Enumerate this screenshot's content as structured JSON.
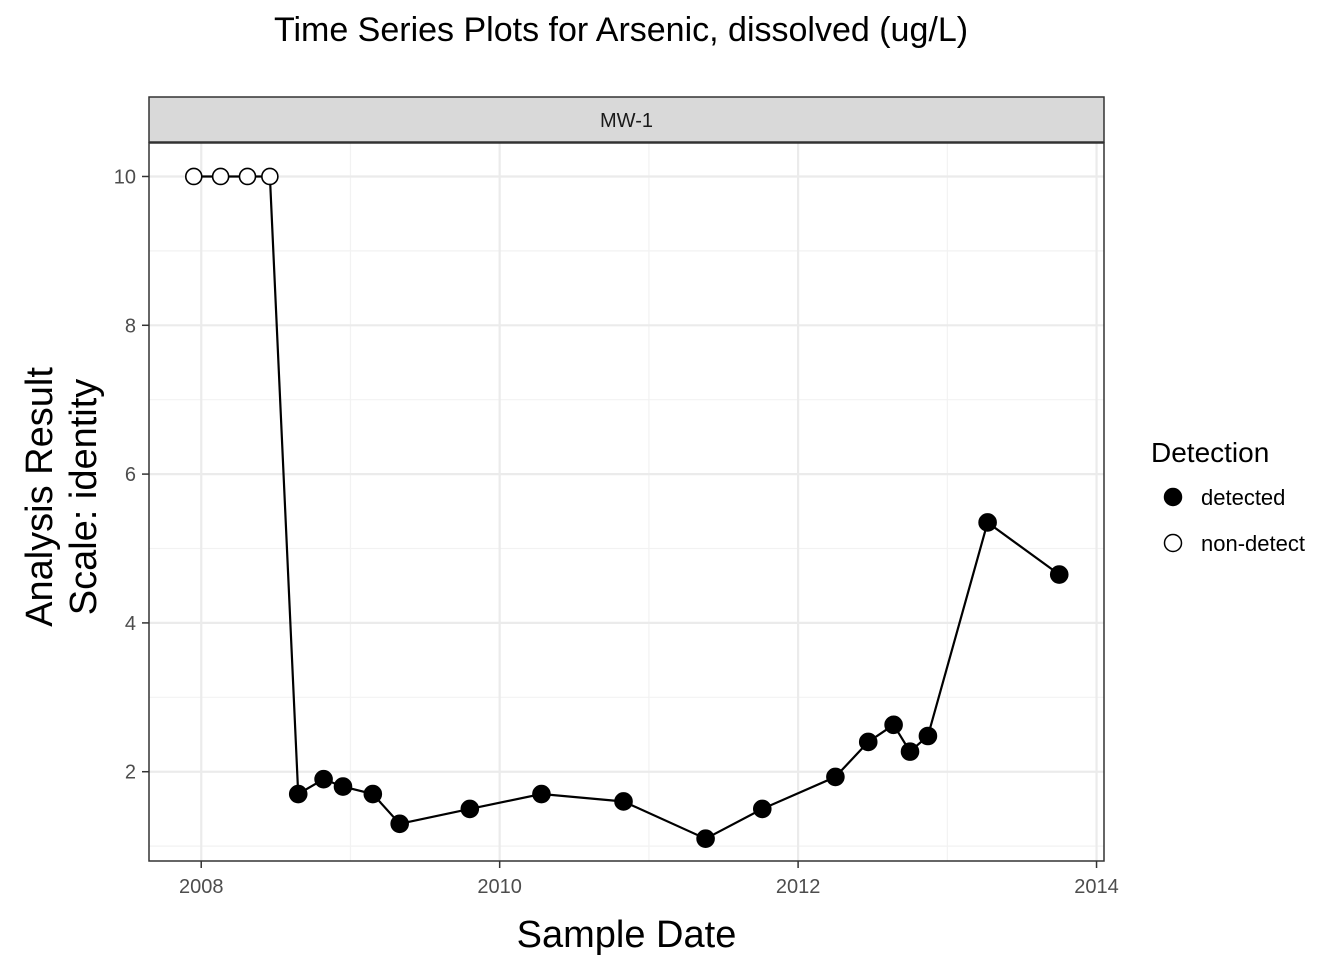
{
  "chart_data": {
    "type": "line",
    "title": "Time Series Plots for Arsenic, dissolved (ug/L)",
    "facet": "MW-1",
    "xlabel": "Sample Date",
    "ylabel_lines": [
      "Analysis Result",
      "Scale: identity"
    ],
    "xlim": [
      2007.65,
      2014.05
    ],
    "ylim": [
      0.8,
      10.45
    ],
    "x_ticks": [
      2008,
      2010,
      2012,
      2014
    ],
    "x_tick_labels": [
      "2008",
      "2010",
      "2012",
      "2014"
    ],
    "y_ticks": [
      2,
      4,
      6,
      8,
      10
    ],
    "y_tick_labels": [
      "2",
      "4",
      "6",
      "8",
      "10"
    ],
    "grid": true,
    "legend": {
      "title": "Detection",
      "position": "right",
      "entries": [
        {
          "label": "detected",
          "filled": true
        },
        {
          "label": "non-detect",
          "filled": false
        }
      ]
    },
    "series": [
      {
        "points": [
          {
            "x": 2007.95,
            "y": 10.0,
            "detect": "non-detect"
          },
          {
            "x": 2008.13,
            "y": 10.0,
            "detect": "non-detect"
          },
          {
            "x": 2008.31,
            "y": 10.0,
            "detect": "non-detect"
          },
          {
            "x": 2008.46,
            "y": 10.0,
            "detect": "non-detect"
          },
          {
            "x": 2008.65,
            "y": 1.7,
            "detect": "detected"
          },
          {
            "x": 2008.82,
            "y": 1.9,
            "detect": "detected"
          },
          {
            "x": 2008.95,
            "y": 1.8,
            "detect": "detected"
          },
          {
            "x": 2009.15,
            "y": 1.7,
            "detect": "detected"
          },
          {
            "x": 2009.33,
            "y": 1.3,
            "detect": "detected"
          },
          {
            "x": 2009.8,
            "y": 1.5,
            "detect": "detected"
          },
          {
            "x": 2010.28,
            "y": 1.7,
            "detect": "detected"
          },
          {
            "x": 2010.83,
            "y": 1.6,
            "detect": "detected"
          },
          {
            "x": 2011.38,
            "y": 1.1,
            "detect": "detected"
          },
          {
            "x": 2011.76,
            "y": 1.5,
            "detect": "detected"
          },
          {
            "x": 2012.25,
            "y": 1.93,
            "detect": "detected"
          },
          {
            "x": 2012.47,
            "y": 2.4,
            "detect": "detected"
          },
          {
            "x": 2012.64,
            "y": 2.63,
            "detect": "detected"
          },
          {
            "x": 2012.75,
            "y": 2.27,
            "detect": "detected"
          },
          {
            "x": 2012.87,
            "y": 2.48,
            "detect": "detected"
          },
          {
            "x": 2013.27,
            "y": 5.35,
            "detect": "detected"
          },
          {
            "x": 2013.75,
            "y": 4.65,
            "detect": "detected"
          }
        ]
      }
    ]
  }
}
